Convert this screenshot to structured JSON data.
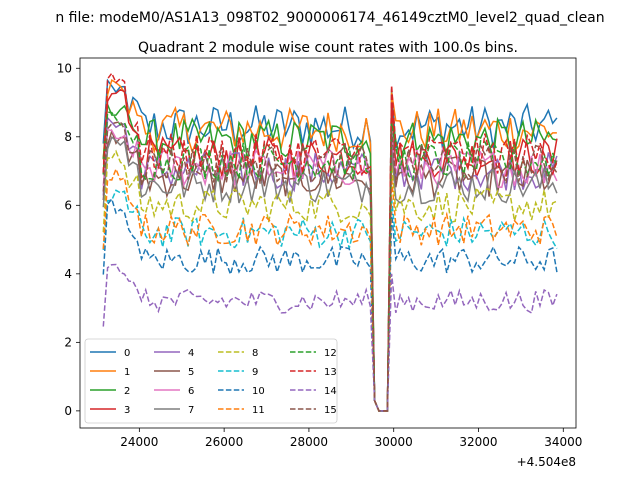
{
  "figure": {
    "suptitle": "n file: modeM0/AS1A13_098T02_9000006174_46149cztM0_level2_quad_clean",
    "title": "Quadrant 2 module wise count rates with 100.0s bins.",
    "x_offset_label": "+4.504e8"
  },
  "chart_data": {
    "type": "line",
    "title": "Quadrant 2 module wise count rates with 100.0s bins.",
    "xlabel": "",
    "ylabel": "",
    "x_offset": 450400000,
    "xlim": [
      22600,
      34300
    ],
    "ylim": [
      -0.5,
      10.3
    ],
    "xticks": [
      24000,
      26000,
      28000,
      30000,
      32000,
      34000
    ],
    "yticks": [
      0,
      2,
      4,
      6,
      8,
      10
    ],
    "xtick_labels": [
      "24000",
      "26000",
      "28000",
      "30000",
      "32000",
      "34000"
    ],
    "ytick_labels": [
      "0",
      "2",
      "4",
      "6",
      "8",
      "10"
    ],
    "x_range": [
      23150,
      33850
    ],
    "bin_width": 100,
    "dip_range": [
      29550,
      29850
    ],
    "legend": {
      "placement": "lower-left",
      "columns": 4
    },
    "series": [
      {
        "name": "0",
        "color": "#1f77b4",
        "dash": "solid",
        "peak": 9.8,
        "level": 8.3
      },
      {
        "name": "1",
        "color": "#ff7f0e",
        "dash": "solid",
        "peak": 9.7,
        "level": 8.2
      },
      {
        "name": "2",
        "color": "#2ca02c",
        "dash": "solid",
        "peak": 9.1,
        "level": 7.9
      },
      {
        "name": "3",
        "color": "#d62728",
        "dash": "solid",
        "peak": 9.4,
        "level": 7.4
      },
      {
        "name": "4",
        "color": "#9467bd",
        "dash": "solid",
        "peak": 8.6,
        "level": 7.0
      },
      {
        "name": "5",
        "color": "#8c564b",
        "dash": "solid",
        "peak": 8.2,
        "level": 6.8
      },
      {
        "name": "6",
        "color": "#e377c2",
        "dash": "solid",
        "peak": 8.4,
        "level": 7.1
      },
      {
        "name": "7",
        "color": "#7f7f7f",
        "dash": "solid",
        "peak": 8.0,
        "level": 6.6
      },
      {
        "name": "8",
        "color": "#bcbd22",
        "dash": "dashed",
        "peak": 7.6,
        "level": 6.0
      },
      {
        "name": "9",
        "color": "#17becf",
        "dash": "dashed",
        "peak": 6.6,
        "level": 5.2
      },
      {
        "name": "10",
        "color": "#1f77b4",
        "dash": "dashed",
        "peak": 6.2,
        "level": 4.4
      },
      {
        "name": "11",
        "color": "#ff7f0e",
        "dash": "dashed",
        "peak": 7.2,
        "level": 5.3
      },
      {
        "name": "12",
        "color": "#2ca02c",
        "dash": "dashed",
        "peak": 8.8,
        "level": 7.3
      },
      {
        "name": "13",
        "color": "#d62728",
        "dash": "dashed",
        "peak": 9.9,
        "level": 7.5
      },
      {
        "name": "14",
        "color": "#9467bd",
        "dash": "dashed",
        "peak": 4.4,
        "level": 3.2
      },
      {
        "name": "15",
        "color": "#8c564b",
        "dash": "dashed",
        "peak": 8.6,
        "level": 7.2
      }
    ]
  }
}
